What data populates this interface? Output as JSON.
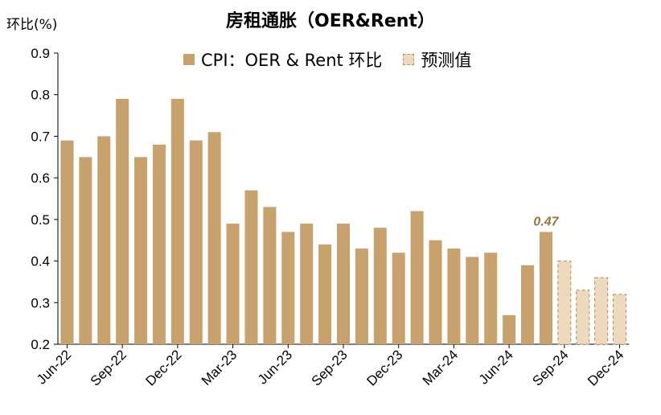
{
  "chart_data": {
    "type": "bar",
    "title": "房租通胀（OER&Rent）",
    "ylabel": "环比(%)",
    "ylim": [
      0.2,
      0.9
    ],
    "yticks": [
      "0.2",
      "0.3",
      "0.4",
      "0.5",
      "0.6",
      "0.7",
      "0.8",
      "0.9"
    ],
    "grid": false,
    "legend_position": "top-center",
    "categories": [
      "Jun-22",
      "Jul-22",
      "Aug-22",
      "Sep-22",
      "Oct-22",
      "Nov-22",
      "Dec-22",
      "Jan-23",
      "Feb-23",
      "Mar-23",
      "Apr-23",
      "May-23",
      "Jun-23",
      "Jul-23",
      "Aug-23",
      "Sep-23",
      "Oct-23",
      "Nov-23",
      "Dec-23",
      "Jan-24",
      "Feb-24",
      "Mar-24",
      "Apr-24",
      "May-24",
      "Jun-24",
      "Jul-24",
      "Aug-24",
      "Sep-24",
      "Oct-24",
      "Nov-24",
      "Dec-24"
    ],
    "xtick_labels": [
      "Jun-22",
      "Sep-22",
      "Dec-22",
      "Mar-23",
      "Jun-23",
      "Sep-23",
      "Dec-23",
      "Mar-24",
      "Jun-24",
      "Sep-24",
      "Dec-24"
    ],
    "series": [
      {
        "name": "CPI：OER & Rent 环比",
        "color": "#c8a26d",
        "values": [
          0.69,
          0.65,
          0.7,
          0.79,
          0.65,
          0.68,
          0.79,
          0.69,
          0.71,
          0.49,
          0.57,
          0.53,
          0.47,
          0.49,
          0.44,
          0.49,
          0.43,
          0.48,
          0.42,
          0.52,
          0.45,
          0.43,
          0.41,
          0.42,
          0.27,
          0.39,
          0.47,
          null,
          null,
          null,
          null
        ]
      },
      {
        "name": "预测值",
        "color": "#ecd9be",
        "values": [
          null,
          null,
          null,
          null,
          null,
          null,
          null,
          null,
          null,
          null,
          null,
          null,
          null,
          null,
          null,
          null,
          null,
          null,
          null,
          null,
          null,
          null,
          null,
          null,
          null,
          null,
          null,
          0.4,
          0.33,
          0.36,
          0.32
        ]
      }
    ],
    "annotations": [
      {
        "category": "Aug-24",
        "value": 0.47,
        "text": "0.47",
        "color": "#9a7440"
      }
    ]
  }
}
